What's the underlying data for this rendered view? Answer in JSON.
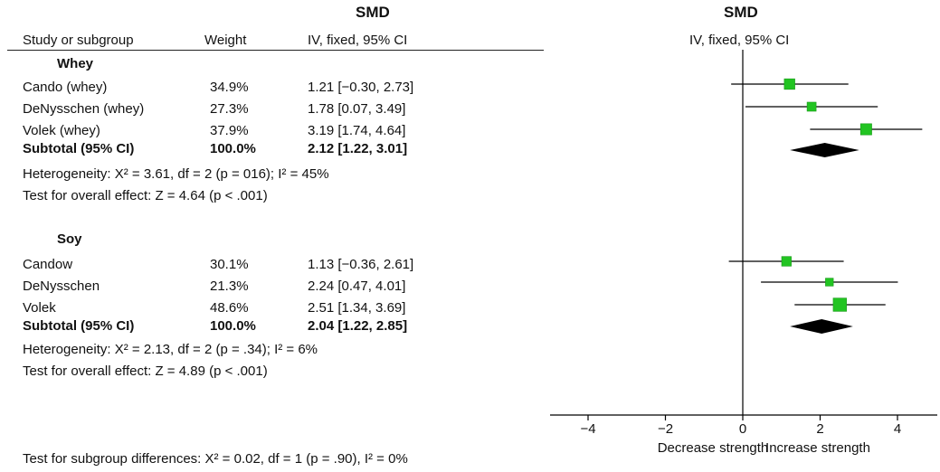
{
  "header": {
    "smd_left": "SMD",
    "smd_right": "SMD",
    "col_study": "Study or subgroup",
    "col_weight": "Weight",
    "col_ci": "IV, fixed, 95% CI",
    "col_ci_right": "IV, fixed, 95% CI"
  },
  "groups": [
    {
      "title": "Whey",
      "rows": [
        {
          "study": "Cando    (whey)",
          "weight": "34.9%",
          "ci": "1.21 [−0.30, 2.73]"
        },
        {
          "study": "DeNysschen (whey)",
          "weight": "27.3%",
          "ci": "1.78 [0.07, 3.49]"
        },
        {
          "study": "Volek (whey)",
          "weight": "37.9%",
          "ci": "3.19 [1.74, 4.64]"
        }
      ],
      "subtotal": {
        "study": "Subtotal (95% CI)",
        "weight": "100.0%",
        "ci": "2.12 [1.22, 3.01]"
      },
      "heterogeneity": "Heterogeneity: Χ² = 3.61, df = 2 (p = 016); I² = 45%",
      "overall": "Test for overall effect: Z = 4.64 (p < .001)"
    },
    {
      "title": "Soy",
      "rows": [
        {
          "study": "Candow",
          "weight": "30.1%",
          "ci": "1.13 [−0.36, 2.61]"
        },
        {
          "study": "DeNysschen",
          "weight": "21.3%",
          "ci": "2.24 [0.47, 4.01]"
        },
        {
          "study": "Volek",
          "weight": "48.6%",
          "ci": "2.51 [1.34, 3.69]"
        }
      ],
      "subtotal": {
        "study": "Subtotal (95% CI)",
        "weight": "100.0%",
        "ci": "2.04 [1.22, 2.85]"
      },
      "heterogeneity": "Heterogeneity: Χ² = 2.13, df = 2 (p = .34); I² = 6%",
      "overall": "Test for overall effect: Z = 4.89 (p < .001)"
    }
  ],
  "footer": "Test for subgroup differences: Χ² = 0.02, df = 1 (p = .90), I² = 0%",
  "axis": {
    "ticks": [
      "−4",
      "−2",
      "0",
      "2",
      "4"
    ],
    "left_label": "Decrease strength",
    "right_label": "Increase strength"
  },
  "colors": {
    "study_marker": "#22c422",
    "diamond": "#000000",
    "lines": "#000000"
  },
  "chart_data": {
    "type": "forest",
    "xlim": [
      -4,
      4
    ],
    "x_ticks": [
      -4,
      -2,
      0,
      2,
      4
    ],
    "reference_line": 0,
    "studies": [
      {
        "group": "Whey",
        "name": "Cando    (whey)",
        "est": 1.21,
        "lo": -0.3,
        "hi": 2.73,
        "weight": 34.9
      },
      {
        "group": "Whey",
        "name": "DeNysschen (whey)",
        "est": 1.78,
        "lo": 0.07,
        "hi": 3.49,
        "weight": 27.3
      },
      {
        "group": "Whey",
        "name": "Volek (whey)",
        "est": 3.19,
        "lo": 1.74,
        "hi": 4.64,
        "weight": 37.9
      },
      {
        "group": "Soy",
        "name": "Candow",
        "est": 1.13,
        "lo": -0.36,
        "hi": 2.61,
        "weight": 30.1
      },
      {
        "group": "Soy",
        "name": "DeNysschen",
        "est": 2.24,
        "lo": 0.47,
        "hi": 4.01,
        "weight": 21.3
      },
      {
        "group": "Soy",
        "name": "Volek",
        "est": 2.51,
        "lo": 1.34,
        "hi": 3.69,
        "weight": 48.6
      }
    ],
    "subtotals": [
      {
        "group": "Whey",
        "est": 2.12,
        "lo": 1.22,
        "hi": 3.01
      },
      {
        "group": "Soy",
        "est": 2.04,
        "lo": 1.22,
        "hi": 2.85
      }
    ]
  }
}
